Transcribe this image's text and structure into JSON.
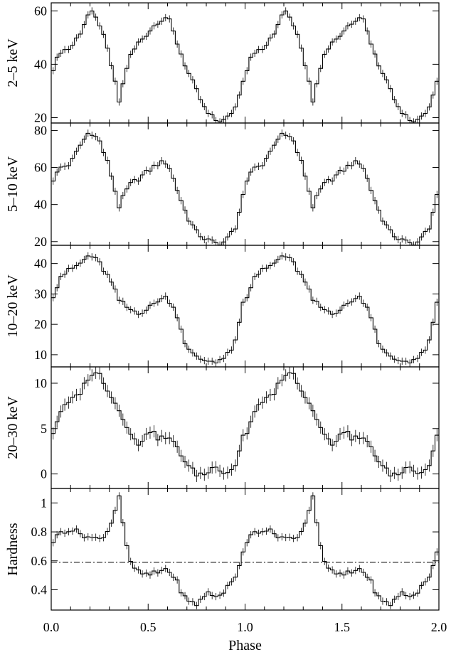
{
  "chart_data": [
    {
      "type": "line",
      "ylabel": "2–5 keV",
      "xlim": [
        0.0,
        2.0
      ],
      "ylim": [
        18,
        63
      ],
      "yticks": [
        20,
        40,
        60
      ],
      "line_color": "#000000",
      "errorbars": true,
      "x": [
        0.0,
        0.05,
        0.1,
        0.15,
        0.2,
        0.25,
        0.3,
        0.35,
        0.4,
        0.45,
        0.5,
        0.55,
        0.6,
        0.65,
        0.7,
        0.75,
        0.8,
        0.85,
        0.9,
        0.95,
        1.0
      ],
      "values": [
        37,
        45,
        46,
        52,
        60,
        55,
        43,
        26,
        42,
        48,
        52,
        56,
        58,
        48,
        38,
        30,
        22,
        19,
        19,
        24,
        37
      ]
    },
    {
      "type": "line",
      "ylabel": "5–10 keV",
      "xlim": [
        0.0,
        2.0
      ],
      "ylim": [
        18,
        84
      ],
      "yticks": [
        20,
        40,
        60,
        80
      ],
      "line_color": "#000000",
      "errorbars": true,
      "x": [
        0.0,
        0.05,
        0.1,
        0.15,
        0.2,
        0.25,
        0.3,
        0.35,
        0.4,
        0.45,
        0.5,
        0.55,
        0.6,
        0.65,
        0.7,
        0.75,
        0.8,
        0.85,
        0.9,
        0.95,
        1.0
      ],
      "values": [
        52,
        60,
        62,
        72,
        80,
        74,
        60,
        39,
        50,
        54,
        58,
        62,
        63,
        48,
        34,
        25,
        21,
        19,
        20,
        28,
        48
      ]
    },
    {
      "type": "line",
      "ylabel": "10–20 keV",
      "xlim": [
        0.0,
        2.0
      ],
      "ylim": [
        6,
        46
      ],
      "yticks": [
        10,
        20,
        30,
        40
      ],
      "line_color": "#000000",
      "errorbars": true,
      "x": [
        0.0,
        0.05,
        0.1,
        0.15,
        0.2,
        0.25,
        0.3,
        0.35,
        0.4,
        0.45,
        0.5,
        0.55,
        0.6,
        0.65,
        0.7,
        0.75,
        0.8,
        0.85,
        0.9,
        0.95,
        1.0
      ],
      "values": [
        28,
        36,
        38,
        40,
        43,
        40,
        35,
        28,
        25,
        24,
        25,
        28,
        29,
        23,
        12,
        9,
        8,
        8,
        9,
        14,
        30
      ]
    },
    {
      "type": "line",
      "ylabel": "20–30 keV",
      "xlim": [
        0.0,
        2.0
      ],
      "ylim": [
        -1.6,
        11.8
      ],
      "yticks": [
        0,
        5,
        10
      ],
      "line_color": "#000000",
      "errorbars": true,
      "x": [
        0.0,
        0.05,
        0.1,
        0.15,
        0.2,
        0.25,
        0.3,
        0.35,
        0.4,
        0.45,
        0.5,
        0.55,
        0.6,
        0.65,
        0.7,
        0.75,
        0.8,
        0.85,
        0.9,
        0.95,
        1.0
      ],
      "values": [
        4,
        7,
        8,
        9,
        11,
        11,
        9,
        7,
        5,
        3,
        5,
        4,
        4,
        3,
        1,
        0,
        0,
        1,
        0,
        1,
        5
      ]
    },
    {
      "type": "line",
      "ylabel": "Hardness",
      "xlabel": "Phase",
      "xlim": [
        0.0,
        2.0
      ],
      "ylim": [
        0.26,
        1.1
      ],
      "yticks": [
        0.4,
        0.6,
        0.8,
        1.0
      ],
      "xticks": [
        0.0,
        0.5,
        1.0,
        1.5,
        2.0
      ],
      "xtick_labels": [
        "0.0",
        "0.5",
        "1.0",
        "1.5",
        "2.0"
      ],
      "reference_line": 0.59,
      "reference_line_style": "dash-dot",
      "line_color": "#000000",
      "errorbars": true,
      "x": [
        0.0,
        0.05,
        0.1,
        0.15,
        0.2,
        0.25,
        0.3,
        0.35,
        0.4,
        0.45,
        0.5,
        0.55,
        0.6,
        0.65,
        0.7,
        0.75,
        0.8,
        0.85,
        0.9,
        0.95,
        1.0
      ],
      "values": [
        0.72,
        0.8,
        0.82,
        0.79,
        0.76,
        0.75,
        0.82,
        1.05,
        0.6,
        0.52,
        0.5,
        0.52,
        0.55,
        0.45,
        0.32,
        0.3,
        0.38,
        0.35,
        0.4,
        0.48,
        0.72
      ]
    }
  ]
}
